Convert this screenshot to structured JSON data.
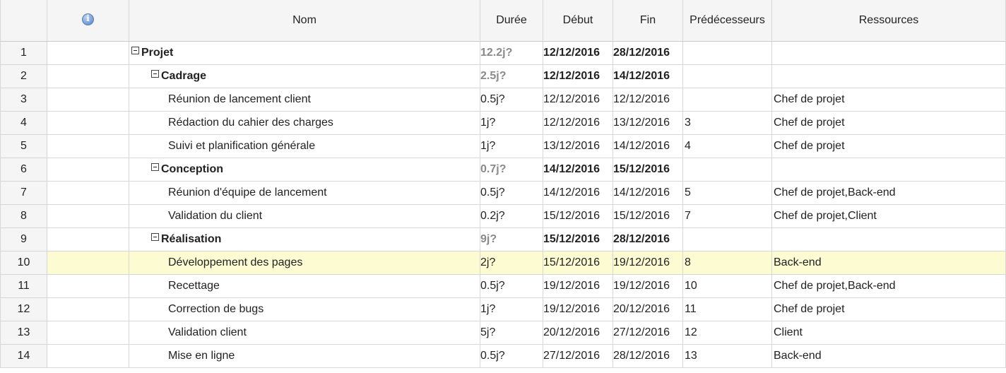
{
  "header": {
    "info_icon": "info-icon",
    "nom": "Nom",
    "duree": "Durée",
    "debut": "Début",
    "fin": "Fin",
    "predecesseurs": "Prédécesseurs",
    "ressources": "Ressources"
  },
  "rows": [
    {
      "num": "1",
      "level": 0,
      "summary": true,
      "nom": "Projet",
      "duree": "12.2j?",
      "debut": "12/12/2016",
      "fin": "28/12/2016",
      "pred": "",
      "res": ""
    },
    {
      "num": "2",
      "level": 1,
      "summary": true,
      "nom": "Cadrage",
      "duree": "2.5j?",
      "debut": "12/12/2016",
      "fin": "14/12/2016",
      "pred": "",
      "res": ""
    },
    {
      "num": "3",
      "level": 2,
      "summary": false,
      "nom": "Réunion de lancement client",
      "duree": "0.5j?",
      "debut": "12/12/2016",
      "fin": "12/12/2016",
      "pred": "",
      "res": "Chef de projet"
    },
    {
      "num": "4",
      "level": 2,
      "summary": false,
      "nom": "Rédaction du cahier des charges",
      "duree": "1j?",
      "debut": "12/12/2016",
      "fin": "13/12/2016",
      "pred": "3",
      "res": "Chef de projet"
    },
    {
      "num": "5",
      "level": 2,
      "summary": false,
      "nom": "Suivi et planification générale",
      "duree": "1j?",
      "debut": "13/12/2016",
      "fin": "14/12/2016",
      "pred": "4",
      "res": "Chef de projet"
    },
    {
      "num": "6",
      "level": 1,
      "summary": true,
      "nom": "Conception",
      "duree": "0.7j?",
      "debut": "14/12/2016",
      "fin": "15/12/2016",
      "pred": "",
      "res": ""
    },
    {
      "num": "7",
      "level": 2,
      "summary": false,
      "nom": "Réunion d'équipe de lancement",
      "duree": "0.5j?",
      "debut": "14/12/2016",
      "fin": "14/12/2016",
      "pred": "5",
      "res": "Chef de projet,Back-end"
    },
    {
      "num": "8",
      "level": 2,
      "summary": false,
      "nom": "Validation du client",
      "duree": "0.2j?",
      "debut": "15/12/2016",
      "fin": "15/12/2016",
      "pred": "7",
      "res": "Chef de projet,Client"
    },
    {
      "num": "9",
      "level": 1,
      "summary": true,
      "nom": "Réalisation",
      "duree": "9j?",
      "debut": "15/12/2016",
      "fin": "28/12/2016",
      "pred": "",
      "res": ""
    },
    {
      "num": "10",
      "level": 2,
      "summary": false,
      "selected": true,
      "nom": "Développement des pages",
      "duree": "2j?",
      "debut": "15/12/2016",
      "fin": "19/12/2016",
      "pred": "8",
      "res": "Back-end"
    },
    {
      "num": "11",
      "level": 2,
      "summary": false,
      "nom": "Recettage",
      "duree": "0.5j?",
      "debut": "19/12/2016",
      "fin": "19/12/2016",
      "pred": "10",
      "res": "Chef de projet,Back-end"
    },
    {
      "num": "12",
      "level": 2,
      "summary": false,
      "nom": "Correction de bugs",
      "duree": "1j?",
      "debut": "19/12/2016",
      "fin": "20/12/2016",
      "pred": "11",
      "res": "Chef de projet"
    },
    {
      "num": "13",
      "level": 2,
      "summary": false,
      "nom": "Validation client",
      "duree": "5j?",
      "debut": "20/12/2016",
      "fin": "27/12/2016",
      "pred": "12",
      "res": "Client"
    },
    {
      "num": "14",
      "level": 2,
      "summary": false,
      "nom": "Mise en ligne",
      "duree": "0.5j?",
      "debut": "27/12/2016",
      "fin": "28/12/2016",
      "pred": "13",
      "res": "Back-end"
    }
  ],
  "colors": {
    "header_bg": "#f5f5f5",
    "grid_line": "#d6d6d6",
    "selected_row_bg": "#fdfbd2",
    "summary_duration_text": "#8a8a8a",
    "info_icon": "#7fa5da"
  }
}
